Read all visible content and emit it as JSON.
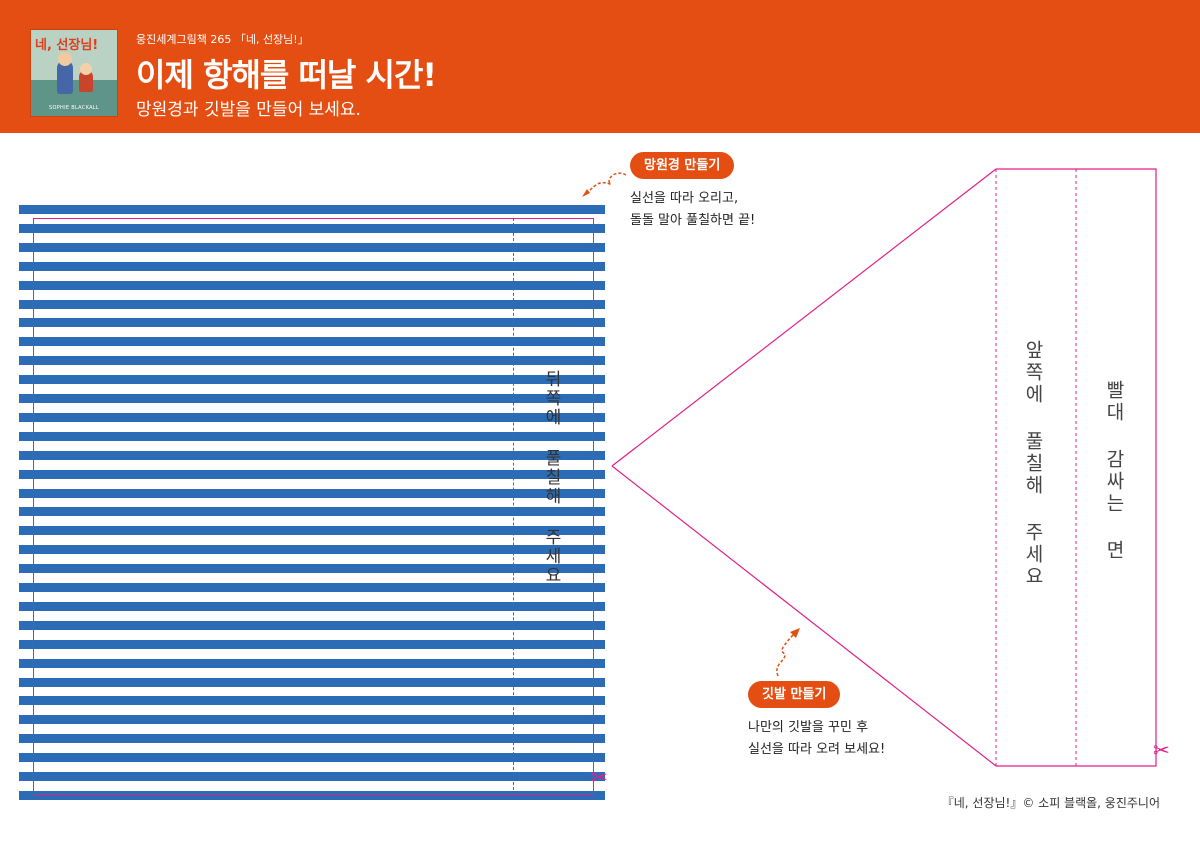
{
  "header": {
    "series": "웅진세계그림책 265 「네, 선장님!」",
    "title": "이제 항해를 떠날 시간!",
    "subtitle": "망원경과 깃발을 만들어 보세요.",
    "cover_title": "네, 선장님!",
    "cover_author": "SOPHIE BLACKALL"
  },
  "telescope": {
    "pill": "망원경 만들기",
    "note_line1": "실선을 따라 오리고,",
    "note_line2": "돌돌 말아 풀칠하면 끝!",
    "back_label": "뒤쪽에 풀칠해 주세요"
  },
  "flag": {
    "pill": "깃발 만들기",
    "note_line1": "나만의 깃발을 꾸민 후",
    "note_line2": "실선을 따라 오려 보세요!",
    "front_label": "앞쪽에 풀칠해 주세요",
    "wrap_label": "빨대 감싸는 면"
  },
  "credit": "『네, 선장님!』© 소피 블랙올, 웅진주니어",
  "colors": {
    "orange": "#e54e12",
    "stripe_blue": "#2c6cb6",
    "cut_line_magenta": "#e0208a"
  },
  "icons": [
    "scissors-icon",
    "dashed-arrow-icon"
  ]
}
